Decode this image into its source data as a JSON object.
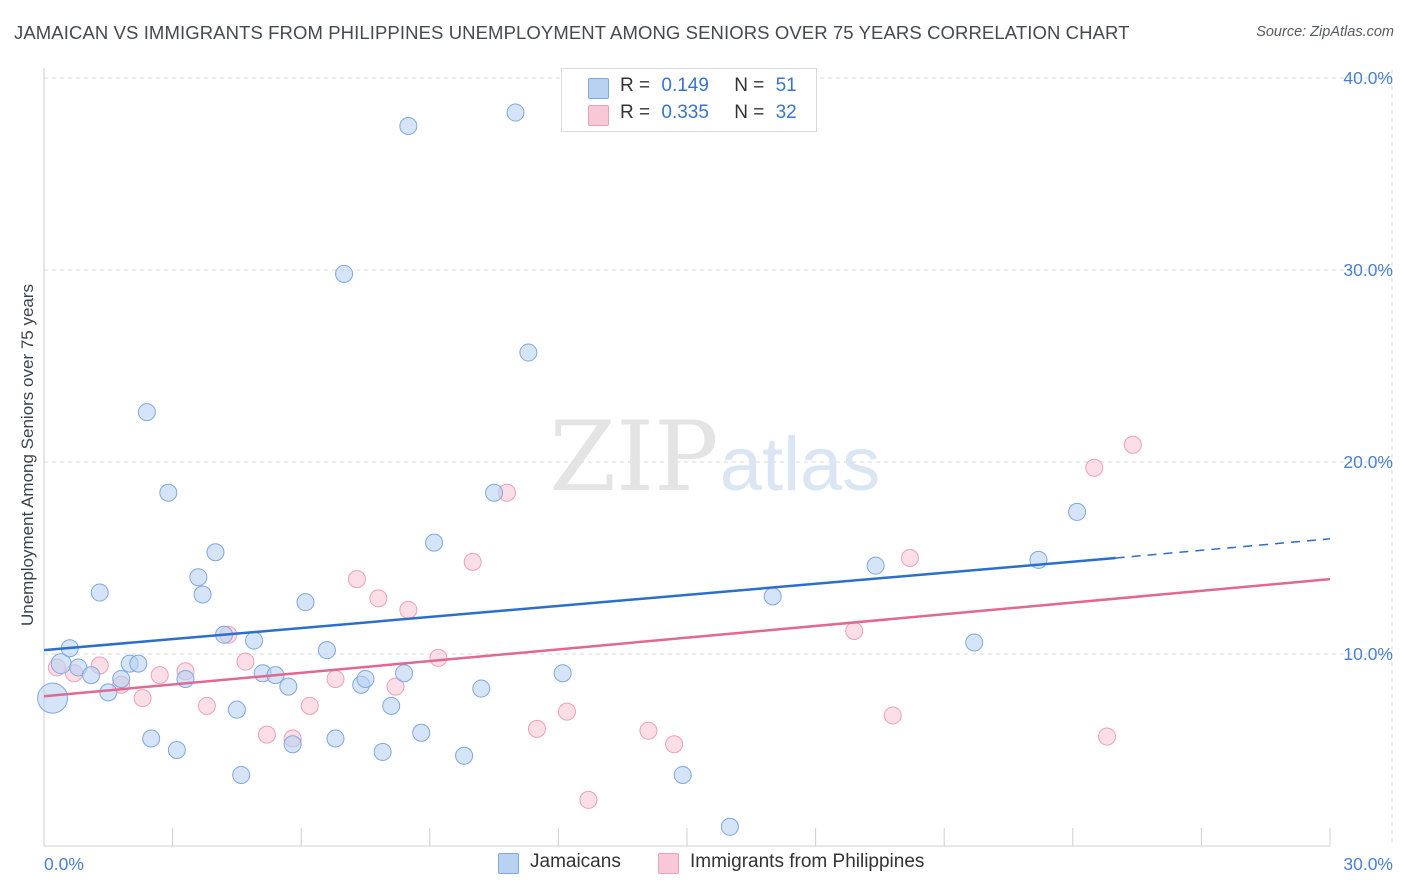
{
  "title": "JAMAICAN VS IMMIGRANTS FROM PHILIPPINES UNEMPLOYMENT AMONG SENIORS OVER 75 YEARS CORRELATION CHART",
  "source": "Source: ZipAtlas.com",
  "watermark": {
    "zip": "ZIP",
    "atlas": "atlas"
  },
  "legend_top": [
    {
      "r_label": "R =",
      "r_value": "0.149",
      "n_label": "N =",
      "n_value": "51"
    },
    {
      "r_label": "R =",
      "r_value": "0.335",
      "n_label": "N =",
      "n_value": "32"
    }
  ],
  "legend_bottom": [
    "Jamaicans",
    "Immigrants from Philippines"
  ],
  "colors": {
    "jamaicans_fill": "#b9d2f2",
    "jamaicans_stroke": "#7fa8e0",
    "jamaicans_line": "#2b6fcb",
    "philippines_fill": "#f8c8d6",
    "philippines_stroke": "#eea0b8",
    "philippines_line": "#e06892",
    "axis_label": "#4a7fd0",
    "grid": "#d8d8d8"
  },
  "chart_data": {
    "type": "scatter",
    "title": "JAMAICAN VS IMMIGRANTS FROM PHILIPPINES UNEMPLOYMENT AMONG SENIORS OVER 75 YEARS CORRELATION CHART",
    "xlabel": "",
    "ylabel": "Unemployment Among Seniors over 75 years",
    "xlim": [
      0,
      30
    ],
    "ylim": [
      0,
      40
    ],
    "x_tick_labels": [
      {
        "value": 0,
        "label": "0.0%"
      },
      {
        "value": 30,
        "label": "30.0%"
      }
    ],
    "y_tick_labels": [
      {
        "value": 10,
        "label": "10.0%"
      },
      {
        "value": 20,
        "label": "20.0%"
      },
      {
        "value": 30,
        "label": "30.0%"
      },
      {
        "value": 40,
        "label": "40.0%"
      }
    ],
    "series": [
      {
        "name": "Jamaicans",
        "R": 0.149,
        "N": 51,
        "trend": {
          "x0": 0,
          "y0": 10.2,
          "x1": 25,
          "y1": 15.0,
          "dashed_to_x": 30,
          "dashed_to_y": 16.0
        },
        "points": [
          [
            0.2,
            7.7
          ],
          [
            0.4,
            9.5
          ],
          [
            0.6,
            10.3
          ],
          [
            0.8,
            9.3
          ],
          [
            1.1,
            8.9
          ],
          [
            1.3,
            13.2
          ],
          [
            1.5,
            8.0
          ],
          [
            1.8,
            8.7
          ],
          [
            2.0,
            9.5
          ],
          [
            2.2,
            9.5
          ],
          [
            2.4,
            22.6
          ],
          [
            2.5,
            5.6
          ],
          [
            2.9,
            18.4
          ],
          [
            3.1,
            5.0
          ],
          [
            3.3,
            8.7
          ],
          [
            3.6,
            14.0
          ],
          [
            3.7,
            13.1
          ],
          [
            4.0,
            15.3
          ],
          [
            4.2,
            11.0
          ],
          [
            4.5,
            7.1
          ],
          [
            4.6,
            3.7
          ],
          [
            4.9,
            10.7
          ],
          [
            5.1,
            9.0
          ],
          [
            5.4,
            8.9
          ],
          [
            5.7,
            8.3
          ],
          [
            5.8,
            5.3
          ],
          [
            6.1,
            12.7
          ],
          [
            6.6,
            10.2
          ],
          [
            6.8,
            5.6
          ],
          [
            7.0,
            29.8
          ],
          [
            7.4,
            8.4
          ],
          [
            7.5,
            8.7
          ],
          [
            7.9,
            4.9
          ],
          [
            8.1,
            7.3
          ],
          [
            8.4,
            9.0
          ],
          [
            8.5,
            37.5
          ],
          [
            8.8,
            5.9
          ],
          [
            9.1,
            15.8
          ],
          [
            9.8,
            4.7
          ],
          [
            10.2,
            8.2
          ],
          [
            10.5,
            18.4
          ],
          [
            11.0,
            38.2
          ],
          [
            11.3,
            25.7
          ],
          [
            12.1,
            9.0
          ],
          [
            14.9,
            3.7
          ],
          [
            16.0,
            1.0
          ],
          [
            17.0,
            13.0
          ],
          [
            19.4,
            14.6
          ],
          [
            21.7,
            10.6
          ],
          [
            23.2,
            14.9
          ],
          [
            24.1,
            17.4
          ]
        ],
        "large_point_sizes": {
          "0": 15,
          "1": 10
        }
      },
      {
        "name": "Immigrants from Philippines",
        "R": 0.335,
        "N": 32,
        "trend": {
          "x0": 0,
          "y0": 7.8,
          "x1": 30,
          "y1": 13.9
        },
        "points": [
          [
            0.3,
            9.3
          ],
          [
            0.7,
            9.0
          ],
          [
            1.3,
            9.4
          ],
          [
            1.8,
            8.4
          ],
          [
            2.3,
            7.7
          ],
          [
            2.7,
            8.9
          ],
          [
            3.3,
            9.1
          ],
          [
            3.8,
            7.3
          ],
          [
            4.3,
            11.0
          ],
          [
            4.7,
            9.6
          ],
          [
            5.2,
            5.8
          ],
          [
            5.8,
            5.6
          ],
          [
            6.2,
            7.3
          ],
          [
            6.8,
            8.7
          ],
          [
            7.3,
            13.9
          ],
          [
            7.8,
            12.9
          ],
          [
            8.2,
            8.3
          ],
          [
            8.5,
            12.3
          ],
          [
            9.2,
            9.8
          ],
          [
            10.0,
            14.8
          ],
          [
            10.8,
            18.4
          ],
          [
            11.5,
            6.1
          ],
          [
            12.2,
            7.0
          ],
          [
            12.7,
            2.4
          ],
          [
            14.1,
            6.0
          ],
          [
            14.7,
            5.3
          ],
          [
            18.9,
            11.2
          ],
          [
            19.8,
            6.8
          ],
          [
            20.2,
            15.0
          ],
          [
            24.5,
            19.7
          ],
          [
            24.8,
            5.7
          ],
          [
            25.4,
            20.9
          ]
        ]
      }
    ]
  }
}
